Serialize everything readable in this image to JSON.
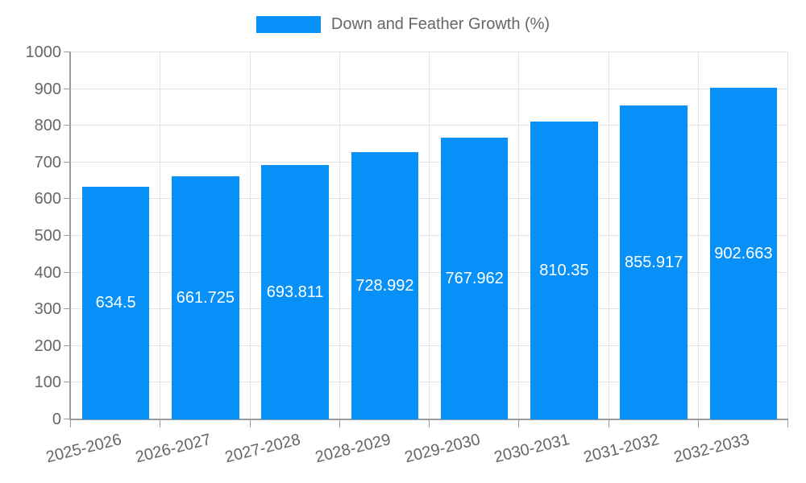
{
  "legend": {
    "label": "Down and Feather Growth (%)"
  },
  "chart_data": {
    "type": "bar",
    "title": "Down and Feather Growth (%)",
    "series_name": "Down and Feather Growth (%)",
    "categories": [
      "2025-2026",
      "2026-2027",
      "2027-2028",
      "2028-2029",
      "2029-2030",
      "2030-2031",
      "2031-2032",
      "2032-2033"
    ],
    "values": [
      634.5,
      661.725,
      693.811,
      728.992,
      767.962,
      810.35,
      855.917,
      902.663
    ],
    "value_labels": [
      "634.5",
      "661.725",
      "693.811",
      "728.992",
      "767.962",
      "810.35",
      "855.917",
      "902.663"
    ],
    "xlabel": "",
    "ylabel": "",
    "ylim": [
      0,
      1000
    ],
    "ytick_step": 100,
    "grid": true,
    "legend_position": "top",
    "bar_labels": "inside-center",
    "colors": {
      "bar": "#0690F8",
      "bar_label": "#FFFFFF",
      "axis_text": "#666666",
      "gridline": "#E4E4E4",
      "axis_line": "#9B9B9B"
    }
  }
}
